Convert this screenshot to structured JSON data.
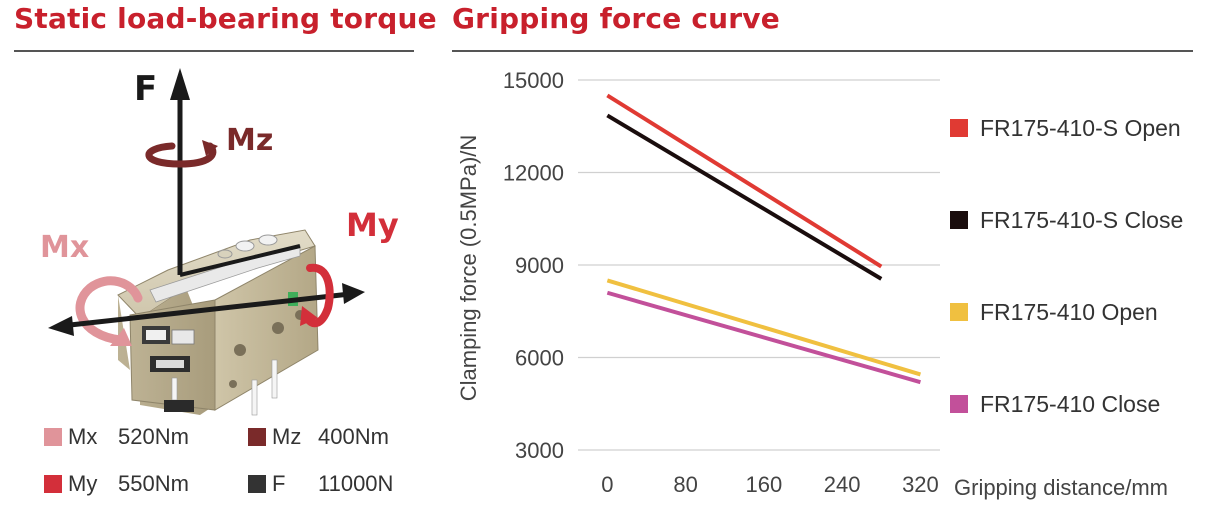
{
  "left_title": "Static load-bearing torque",
  "right_title": "Gripping force curve",
  "illustration": {
    "labels": {
      "f": "F",
      "mz": "Mz",
      "my": "My",
      "mx": "Mx"
    },
    "colors": {
      "mx": "#e0949a",
      "my": "#d32f3a",
      "mz": "#7a2a2a",
      "f": "#222222",
      "body": "#c9c0a6"
    }
  },
  "specs": [
    {
      "name": "Mx",
      "value": "520Nm",
      "color": "#e0949a"
    },
    {
      "name": "Mz",
      "value": "400Nm",
      "color": "#7a2a2a"
    },
    {
      "name": "My",
      "value": "550Nm",
      "color": "#d32f3a"
    },
    {
      "name": "F",
      "value": "11000N",
      "color": "#333333"
    }
  ],
  "chart_data": {
    "type": "line",
    "title": "Gripping force curve",
    "xlabel": "Gripping distance/mm",
    "ylabel": "Clamping force (0.5MPa)/N",
    "x_ticks": [
      0,
      80,
      160,
      240,
      320
    ],
    "y_ticks": [
      3000,
      6000,
      9000,
      12000,
      15000
    ],
    "xlim": [
      -30,
      340
    ],
    "ylim": [
      3000,
      15000
    ],
    "grid": "horizontal",
    "legend_position": "right",
    "series": [
      {
        "name": "FR175-410-S Open",
        "color": "#e03a33",
        "x": [
          0,
          280
        ],
        "y": [
          14500,
          8950
        ]
      },
      {
        "name": "FR175-410-S Close",
        "color": "#1a0d0d",
        "x": [
          0,
          280
        ],
        "y": [
          13850,
          8550
        ]
      },
      {
        "name": "FR175-410 Open",
        "color": "#f0c040",
        "x": [
          0,
          320
        ],
        "y": [
          8500,
          5450
        ]
      },
      {
        "name": "FR175-410 Close",
        "color": "#c2509a",
        "x": [
          0,
          320
        ],
        "y": [
          8100,
          5200
        ]
      }
    ]
  }
}
